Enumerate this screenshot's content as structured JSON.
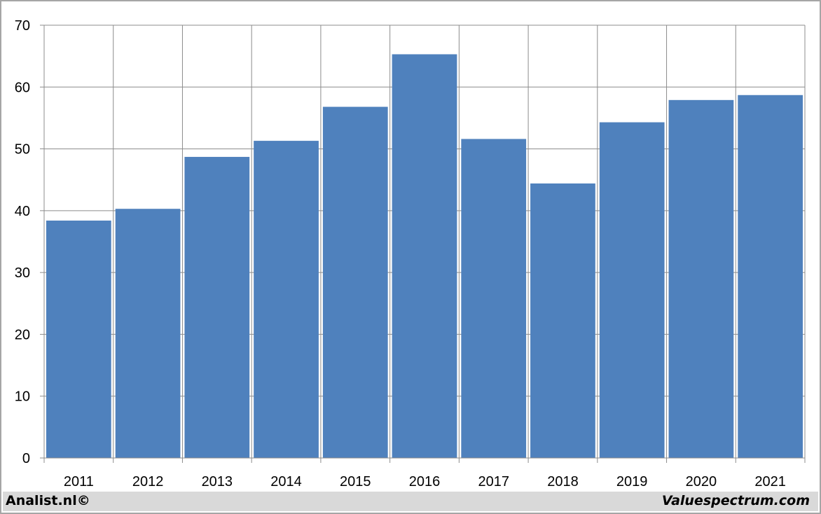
{
  "chart_data": {
    "type": "bar",
    "categories": [
      "2011",
      "2012",
      "2013",
      "2014",
      "2015",
      "2016",
      "2017",
      "2018",
      "2019",
      "2020",
      "2021"
    ],
    "values": [
      38.4,
      40.3,
      48.7,
      51.3,
      56.8,
      65.3,
      51.6,
      44.4,
      54.3,
      57.9,
      58.7
    ],
    "ylim": [
      0,
      70
    ],
    "yticks": [
      0,
      10,
      20,
      30,
      40,
      50,
      60,
      70
    ],
    "grid": true,
    "bar_color": "#4f81bd",
    "grid_color": "#8c8c8c"
  },
  "footer": {
    "left_text": "Analist.nl©",
    "right_text": "Valuespectrum.com"
  }
}
